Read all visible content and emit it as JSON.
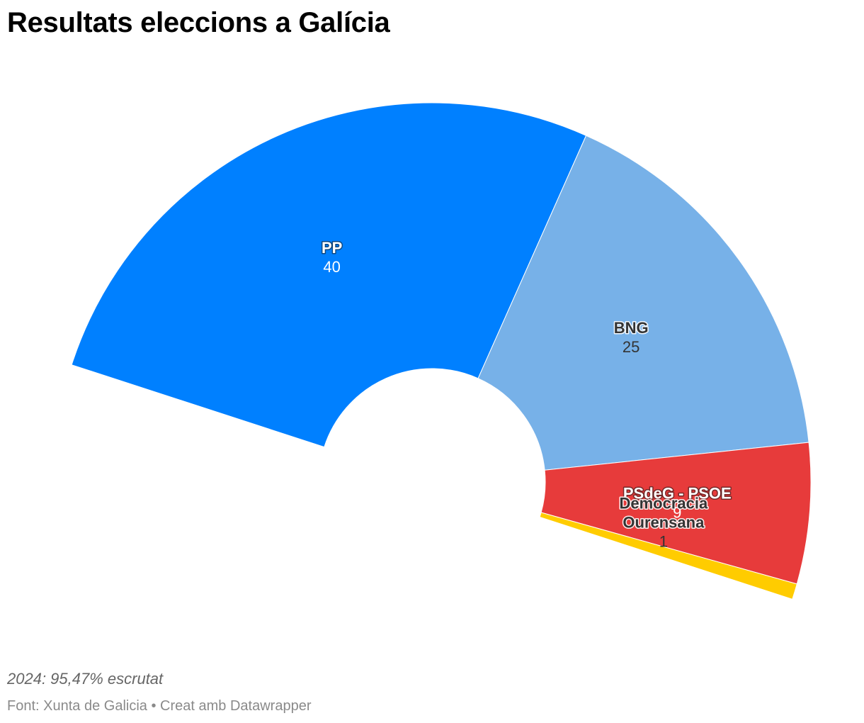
{
  "title": "Resultats eleccions a Galícia",
  "note": "2024: 95,47% escrutat",
  "footer": {
    "source_label": "Font:",
    "source": "Xunta de Galicia",
    "separator": "•",
    "credit": "Creat amb Datawrapper"
  },
  "chart_data": {
    "type": "pie",
    "variant": "parliament-semicircle",
    "total_seats": 75,
    "slices": [
      {
        "name": "PP",
        "value": 40,
        "color": "#0080ff",
        "label_color": "#ffffff",
        "halo_color": "#1a1a1a",
        "label_lines": [
          "PP"
        ]
      },
      {
        "name": "BNG",
        "value": 25,
        "color": "#77b1e8",
        "label_color": "#333333",
        "halo_color": "#ffffff",
        "label_lines": [
          "BNG"
        ]
      },
      {
        "name": "PSdeG - PSOE",
        "value": 9,
        "color": "#e73b3b",
        "label_color": "#ffffff",
        "halo_color": "#1a1a1a",
        "label_lines": [
          "PSdeG - PSOE"
        ]
      },
      {
        "name": "Democracia Ourensana",
        "value": 1,
        "color": "#ffcc00",
        "label_color": "#333333",
        "halo_color": "#ffffff",
        "label_lines": [
          "Democracia",
          "Ourensana"
        ]
      }
    ]
  }
}
